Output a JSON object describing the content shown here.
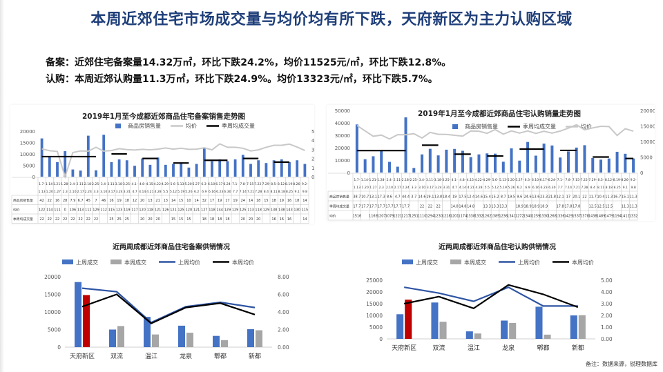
{
  "page": {
    "title": "本周近郊住宅市场成交量与均价均有所下跌，天府新区为主力认购区域",
    "summary1": "备案：近郊住宅备案量14.32万㎡，环比下跌24.2%，均价11525元/㎡，环比下跌12.8%。",
    "summary2": "认购：本周近郊认购量11.3万㎡，环比下跌24.9%。均价13323元/㎡，环比下跌5.7%。",
    "note": "备注：数据来源，锐理数据库"
  },
  "colors": {
    "blue": "#4472c4",
    "gray": "#a6a6a6",
    "red": "#c00000",
    "navy": "#2e54a3",
    "black": "#000000",
    "lightgray": "#c8c8c8"
  },
  "chart_data": [
    {
      "id": "filing-trend",
      "type": "bar",
      "title": "2019年1月至今成都近郊商品住宅备案销售走势图",
      "legend": [
        "商品房销售量",
        "均价",
        "季周均成交量"
      ],
      "table_row_labels": [
        "商品房销售量",
        "均价",
        "季周均成交量"
      ],
      "categories": [
        "1.7-1.13",
        "1.14-1.20",
        "1.21-1.27",
        "1.28-2.3",
        "2.4-2.10",
        "2.11-2.17",
        "2.18-2.24",
        "2.25-3.3",
        "3.4-3.10",
        "3.11-3.17",
        "3.18-3.24",
        "3.25-3.31",
        "4.1-4.7",
        "4.8-4.14",
        "4.15-4.21",
        "4.22-4.28",
        "4.29-5.5",
        "5.6-5.12",
        "5.13-5.19",
        "5.20-5.26",
        "5.27-6.2",
        "6.3-6.9",
        "6.10-6.16",
        "6.17-6.23",
        "6.24-6.30",
        "7.1-7.7",
        "7.8-7.14",
        "7.15-7.21",
        "7.22-7.28",
        "7.29-8.4",
        "8.5-8.11",
        "8.12-8.18",
        "8.19-8.25",
        "8.26-9.1",
        "9.2-9.8"
      ],
      "series": [
        {
          "name": "商品房销售量",
          "values": [
            42,
            22,
            16,
            28,
            7.9,
            6.7,
            45,
            7,
            46,
            16,
            19,
            18,
            12,
            20,
            13,
            21,
            13,
            14,
            15,
            10,
            14,
            32,
            17,
            19,
            17,
            19,
            24,
            14,
            18,
            15,
            18,
            19,
            16,
            18,
            14
          ]
        },
        {
          "name": "均价",
          "values": [
            122,
            114,
            111,
            0,
            106,
            113,
            112,
            129,
            112,
            115,
            123,
            119,
            117,
            120,
            118,
            121,
            126,
            121,
            125,
            120,
            121,
            127,
            118,
            144,
            129,
            129,
            125,
            113,
            118,
            129,
            138,
            138,
            143,
            130,
            115
          ]
        },
        {
          "name": "季周均成交量",
          "values": [
            22,
            22,
            22,
            22,
            22,
            22,
            22,
            22,
            null,
            25,
            25,
            25,
            null,
            20,
            20,
            20,
            null,
            15,
            15,
            15,
            null,
            18,
            18,
            18,
            18,
            null,
            20,
            20,
            20,
            null,
            16,
            16,
            16,
            null,
            14
          ]
        }
      ],
      "ylim": [
        0,
        20000
      ],
      "y2lim": [
        0,
        50
      ],
      "yticks": [
        0,
        5000,
        10000,
        15000,
        20000
      ],
      "y2ticks": [
        0,
        10,
        20,
        30,
        40,
        50
      ]
    },
    {
      "id": "subscription-trend",
      "type": "bar",
      "title": "2019年1月至今成都近郊商品住宅认购销量走势图",
      "legend": [
        "商品房销售量",
        "季周均成交量",
        "均价"
      ],
      "table_row_labels": [
        "商品房销售量",
        "季周均成交量",
        "均价"
      ],
      "categories": [
        "1.7-1.13",
        "1.14-1.20",
        "1.21-1.27",
        "1.28-2.3",
        "2.4-2.10",
        "2.11-2.17",
        "2.18-2.24",
        "2.25-3.3",
        "3.4-3.10",
        "3.11-3.17",
        "3.18-3.24",
        "3.25-3.31",
        "4.1-4.7",
        "4.8-4.14",
        "4.15-4.21",
        "4.22-4.28",
        "4.29-5.5",
        "5.6-5.12",
        "5.13-5.19",
        "5.20-5.26",
        "5.27-6.2",
        "6.3-6.9",
        "6.10-6.16",
        "6.17-6.23",
        "6.24-6.30",
        "7.1-7.7",
        "7.8-7.14",
        "7.15-7.21",
        "7.22-7.28",
        "7.29-8.4",
        "8.5-8.11",
        "8.12-8.18",
        "8.19-8.25",
        "8.26-9.1",
        "9.2-9.8"
      ],
      "series": [
        {
          "name": "商品房销售量",
          "values": [
            38.7,
            10.7,
            13.1,
            17.3,
            8.6,
            4.7,
            44.4,
            3.7,
            14.6,
            19.1,
            13.8,
            18.4,
            19,
            17.5,
            12.4,
            14.6,
            15.4,
            15.2,
            8.7,
            19.5,
            9.6,
            24.6,
            13.6,
            23.3,
            21.8,
            12.1,
            17,
            20.1,
            22,
            11.7,
            10.4,
            11.3,
            16.7,
            15.1,
            11.3
          ]
        },
        {
          "name": "季周均成交量",
          "values": [
            17.7,
            17.7,
            17.7,
            17.7,
            17.7,
            17.7,
            17.7,
            null,
            22,
            22,
            22,
            null,
            14.8,
            14.8,
            14.8,
            null,
            13.3,
            13.3,
            13.3,
            null,
            18.9,
            18.9,
            18.9,
            18.9,
            null,
            17.8,
            17.8,
            17.8,
            null,
            12.5,
            12.5,
            12.5,
            null,
            11.3,
            11.3
          ]
        },
        {
          "name": "均价",
          "values": [
            1516,
            null,
            1169,
            1207,
            1079,
            1221,
            1217,
            1251,
            1110,
            1294,
            1230,
            1228,
            1201,
            1174,
            1338,
            1332,
            1262,
            1385,
            1236,
            1341,
            1272,
            1340,
            1259,
            1330,
            1268,
            1336,
            1429,
            1537,
            1378,
            1438,
            1489,
            1479,
            1194,
            1412,
            1332
          ]
        }
      ],
      "ylim": [
        0,
        50000
      ],
      "y2lim": [
        0,
        20000
      ],
      "yticks": [
        0,
        10000,
        20000,
        30000,
        40000,
        50000
      ],
      "y2ticks": [
        0,
        5000,
        10000,
        15000,
        20000
      ]
    },
    {
      "id": "filing-supply",
      "type": "bar",
      "title": "近两周成都近郊商品住宅备案供销情况",
      "legend": [
        "上周成交",
        "本周成交",
        "上周均价",
        "本周均价"
      ],
      "categories": [
        "天府新区",
        "双流",
        "温江",
        "龙泉",
        "郫都",
        "新都"
      ],
      "series": [
        {
          "name": "上周成交",
          "values": [
            18500,
            5000,
            8600,
            6100,
            3200,
            5100
          ]
        },
        {
          "name": "本周成交",
          "values": [
            14800,
            6000,
            3600,
            4100,
            2000,
            4800
          ]
        },
        {
          "name": "上周均价",
          "values": [
            6.7,
            6.3,
            2.8,
            4.6,
            5.1,
            4.5
          ]
        },
        {
          "name": "本周均价",
          "values": [
            4.6,
            6.0,
            2.7,
            4.5,
            5.0,
            3.7
          ]
        }
      ],
      "ylim": [
        0,
        20000
      ],
      "y2lim": [
        0,
        8
      ],
      "yticks": [
        0,
        5000,
        10000,
        15000,
        20000
      ],
      "y2ticks": [
        "0.00",
        "2.00",
        "4.00",
        "6.00",
        "8.00"
      ]
    },
    {
      "id": "subscription-supply",
      "type": "bar",
      "title": "近两周成都近郊商品住宅认购供销情况",
      "legend": [
        "上周成交",
        "本周成交",
        "上周均价",
        "本周均价"
      ],
      "categories": [
        "天府新区",
        "双流",
        "温江",
        "龙泉",
        "郫都",
        "新都"
      ],
      "series": [
        {
          "name": "上周成交",
          "values": [
            10500,
            15500,
            3200,
            7800,
            13700,
            10000
          ]
        },
        {
          "name": "本周成交",
          "values": [
            16700,
            7300,
            2300,
            6800,
            1800,
            10100
          ]
        },
        {
          "name": "上周均价",
          "values": [
            4.4,
            3.9,
            3.2,
            4.4,
            2.8,
            2.8
          ]
        },
        {
          "name": "本周均价",
          "values": [
            3.0,
            3.6,
            2.6,
            4.6,
            3.8,
            2.7
          ]
        }
      ],
      "ylim": [
        0,
        25000
      ],
      "y2lim": [
        0,
        5
      ],
      "yticks": [
        0,
        5000,
        10000,
        15000,
        20000,
        25000
      ],
      "y2ticks": [
        "0.00",
        "1.00",
        "2.00",
        "3.00",
        "4.00",
        "5.00"
      ]
    }
  ]
}
